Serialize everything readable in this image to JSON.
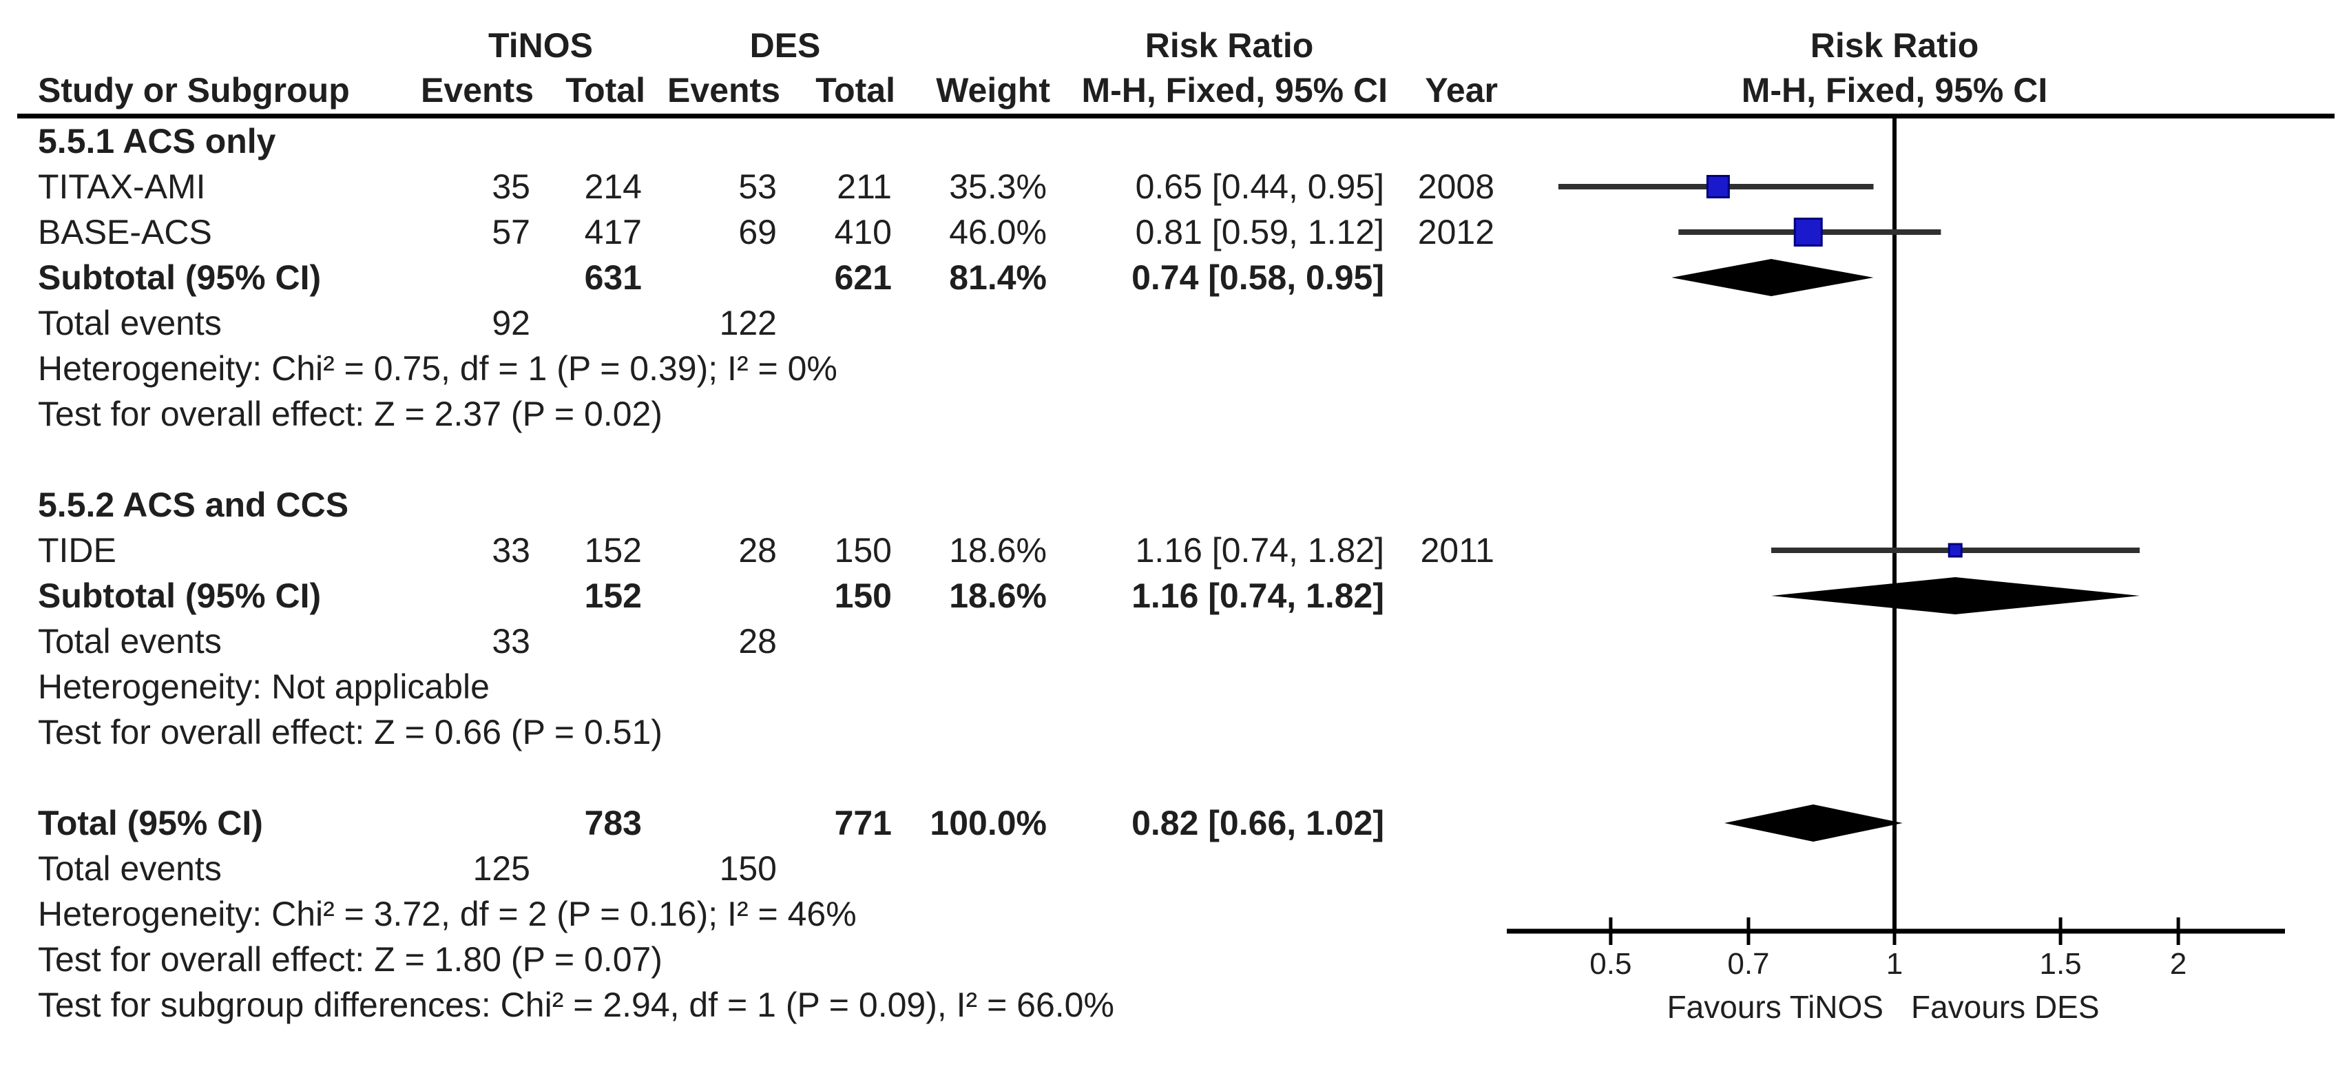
{
  "header": {
    "group1": "TiNOS",
    "group2": "DES",
    "risk_ratio_table": "Risk Ratio",
    "risk_ratio_plot": "Risk Ratio",
    "study": "Study or Subgroup",
    "events": "Events",
    "total": "Total",
    "weight": "Weight",
    "ci_method": "M-H, Fixed, 95% CI",
    "ci_method_plot": "M-H, Fixed, 95% CI",
    "year": "Year"
  },
  "rows": [
    {
      "type": "subgroup",
      "label": "5.5.1 ACS only"
    },
    {
      "type": "study",
      "label": "TITAX-AMI",
      "e1": "35",
      "t1": "214",
      "e2": "53",
      "t2": "211",
      "weight": "35.3%",
      "ci": "0.65 [0.44, 0.95]",
      "year": "2008",
      "rr": 0.65,
      "lo": 0.44,
      "hi": 0.95,
      "weight_num": 35.3
    },
    {
      "type": "study",
      "label": "BASE-ACS",
      "e1": "57",
      "t1": "417",
      "e2": "69",
      "t2": "410",
      "weight": "46.0%",
      "ci": "0.81 [0.59, 1.12]",
      "year": "2012",
      "rr": 0.81,
      "lo": 0.59,
      "hi": 1.12,
      "weight_num": 46.0
    },
    {
      "type": "subtotal",
      "label": "Subtotal (95% CI)",
      "t1": "631",
      "t2": "621",
      "weight": "81.4%",
      "ci": "0.74 [0.58, 0.95]",
      "rr": 0.74,
      "lo": 0.58,
      "hi": 0.95
    },
    {
      "type": "events",
      "label": "Total events",
      "e1": "92",
      "e2": "122"
    },
    {
      "type": "note",
      "label": "Heterogeneity: Chi² = 0.75, df = 1 (P = 0.39); I² = 0%"
    },
    {
      "type": "note",
      "label": "Test for overall effect: Z = 2.37 (P = 0.02)"
    },
    {
      "type": "blank"
    },
    {
      "type": "subgroup",
      "label": "5.5.2 ACS and CCS"
    },
    {
      "type": "study",
      "label": "TIDE",
      "e1": "33",
      "t1": "152",
      "e2": "28",
      "t2": "150",
      "weight": "18.6%",
      "ci": "1.16 [0.74, 1.82]",
      "year": "2011",
      "rr": 1.16,
      "lo": 0.74,
      "hi": 1.82,
      "weight_num": 18.6
    },
    {
      "type": "subtotal",
      "label": "Subtotal (95% CI)",
      "t1": "152",
      "t2": "150",
      "weight": "18.6%",
      "ci": "1.16 [0.74, 1.82]",
      "rr": 1.16,
      "lo": 0.74,
      "hi": 1.82
    },
    {
      "type": "events",
      "label": "Total events",
      "e1": "33",
      "e2": "28"
    },
    {
      "type": "note",
      "label": "Heterogeneity: Not applicable"
    },
    {
      "type": "note",
      "label": "Test for overall effect: Z = 0.66 (P = 0.51)"
    },
    {
      "type": "blank"
    },
    {
      "type": "total",
      "label": "Total (95% CI)",
      "t1": "783",
      "t2": "771",
      "weight": "100.0%",
      "ci": "0.82 [0.66, 1.02]",
      "rr": 0.82,
      "lo": 0.66,
      "hi": 1.02
    },
    {
      "type": "events",
      "label": "Total events",
      "e1": "125",
      "e2": "150"
    },
    {
      "type": "note",
      "label": "Heterogeneity: Chi² = 3.72, df = 2 (P = 0.16); I² = 46%"
    },
    {
      "type": "note",
      "label": "Test for overall effect: Z = 1.80 (P = 0.07)"
    },
    {
      "type": "note",
      "label": "Test for subgroup differences: Chi² = 2.94, df = 1 (P = 0.09), I² = 66.0%"
    }
  ],
  "axis": {
    "tick_values": [
      0.5,
      0.7,
      1,
      1.5,
      2
    ],
    "tick_labels": [
      "0.5",
      "0.7",
      "1",
      "1.5",
      "2"
    ],
    "favours_left": "Favours TiNOS",
    "favours_right": "Favours DES"
  },
  "colors": {
    "square_fill": "#1a1acc",
    "square_border": "#00007d",
    "ci_line": "#303030",
    "diamond": "#000000",
    "axis_line": "#000000",
    "text": "#1f1f1f"
  },
  "chart_data": {
    "type": "scatter",
    "chart_kind": "forest_plot",
    "title": "Risk Ratio — M-H, Fixed, 95% CI (TiNOS vs DES)",
    "effect_measure": "Risk Ratio",
    "method": "M-H, Fixed, 95% CI",
    "groups": [
      "TiNOS",
      "DES"
    ],
    "x_scale": "log",
    "x_ticks": [
      0.5,
      0.7,
      1,
      1.5,
      2
    ],
    "x_axis_range": [
      0.39,
      2.6
    ],
    "null_line": 1,
    "favours": [
      "Favours TiNOS",
      "Favours DES"
    ],
    "subgroups": [
      {
        "name": "5.5.1 ACS only",
        "studies": [
          {
            "study": "TITAX-AMI",
            "year": 2008,
            "tinos_events": 35,
            "tinos_total": 214,
            "des_events": 53,
            "des_total": 211,
            "weight_pct": 35.3,
            "rr": 0.65,
            "ci": [
              0.44,
              0.95
            ]
          },
          {
            "study": "BASE-ACS",
            "year": 2012,
            "tinos_events": 57,
            "tinos_total": 417,
            "des_events": 69,
            "des_total": 410,
            "weight_pct": 46.0,
            "rr": 0.81,
            "ci": [
              0.59,
              1.12
            ]
          }
        ],
        "subtotal": {
          "tinos_total": 631,
          "des_total": 621,
          "weight_pct": 81.4,
          "rr": 0.74,
          "ci": [
            0.58,
            0.95
          ]
        },
        "total_events": {
          "tinos": 92,
          "des": 122
        },
        "heterogeneity": "Chi² = 0.75, df = 1 (P = 0.39); I² = 0%",
        "overall_effect": "Z = 2.37 (P = 0.02)"
      },
      {
        "name": "5.5.2 ACS and CCS",
        "studies": [
          {
            "study": "TIDE",
            "year": 2011,
            "tinos_events": 33,
            "tinos_total": 152,
            "des_events": 28,
            "des_total": 150,
            "weight_pct": 18.6,
            "rr": 1.16,
            "ci": [
              0.74,
              1.82
            ]
          }
        ],
        "subtotal": {
          "tinos_total": 152,
          "des_total": 150,
          "weight_pct": 18.6,
          "rr": 1.16,
          "ci": [
            0.74,
            1.82
          ]
        },
        "total_events": {
          "tinos": 33,
          "des": 28
        },
        "heterogeneity": "Not applicable",
        "overall_effect": "Z = 0.66 (P = 0.51)"
      }
    ],
    "total": {
      "tinos_total": 783,
      "des_total": 771,
      "weight_pct": 100.0,
      "rr": 0.82,
      "ci": [
        0.66,
        1.02
      ],
      "total_events": {
        "tinos": 125,
        "des": 150
      },
      "heterogeneity": "Chi² = 3.72, df = 2 (P = 0.16); I² = 46%",
      "overall_effect": "Z = 1.80 (P = 0.07)",
      "subgroup_differences": "Chi² = 2.94, df = 1 (P = 0.09), I² = 66.0%"
    }
  }
}
